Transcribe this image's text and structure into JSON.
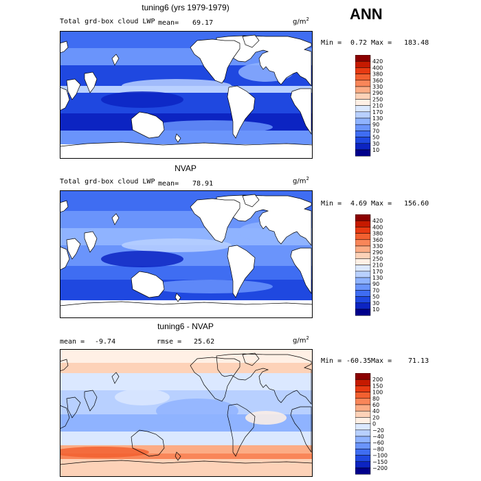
{
  "season": "ANN",
  "panels": [
    {
      "title": "tuning6 (yrs 1979-1979)",
      "subtitle": "Total grd-box cloud LWP",
      "stat_left": "mean=",
      "stat_left_value": "69.17",
      "stat_right": "",
      "stat_right_value": "",
      "units": "g/m",
      "units_exp": "2",
      "min_label": "Min =",
      "min_value": "0.72",
      "max_label": "Max =",
      "max_value": "183.48",
      "levels": [
        "420",
        "400",
        "380",
        "360",
        "330",
        "290",
        "250",
        "210",
        "170",
        "130",
        "90",
        "70",
        "50",
        "30",
        "10"
      ],
      "colors": [
        "#8b0000",
        "#c61a00",
        "#e83a12",
        "#f26030",
        "#f98659",
        "#fcac85",
        "#fdd2b8",
        "#fff0e5",
        "#dbe8ff",
        "#b8d0ff",
        "#8fb3ff",
        "#6a94fb",
        "#3f6df2",
        "#1f48e0",
        "#0c24c2",
        "#00008b"
      ],
      "kind": "model"
    },
    {
      "title": "NVAP",
      "subtitle": "Total grd-box cloud LWP",
      "stat_left": "mean=",
      "stat_left_value": "78.91",
      "stat_right": "",
      "stat_right_value": "",
      "units": "g/m",
      "units_exp": "2",
      "min_label": "Min =",
      "min_value": "4.69",
      "max_label": "Max =",
      "max_value": "156.60",
      "levels": [
        "420",
        "400",
        "380",
        "360",
        "330",
        "290",
        "250",
        "210",
        "170",
        "130",
        "90",
        "70",
        "50",
        "30",
        "10"
      ],
      "colors": [
        "#8b0000",
        "#c61a00",
        "#e83a12",
        "#f26030",
        "#f98659",
        "#fcac85",
        "#fdd2b8",
        "#fff0e5",
        "#dbe8ff",
        "#b8d0ff",
        "#8fb3ff",
        "#6a94fb",
        "#3f6df2",
        "#1f48e0",
        "#0c24c2",
        "#00008b"
      ],
      "kind": "obs"
    },
    {
      "title": "tuning6 - NVAP",
      "subtitle": "",
      "stat_left": "mean =",
      "stat_left_value": "-9.74",
      "stat_right": "rmse =",
      "stat_right_value": "25.62",
      "units": "g/m",
      "units_exp": "2",
      "min_label": "Min =",
      "min_value": "-60.35",
      "max_label": "Max =",
      "max_value": "71.13",
      "levels": [
        "200",
        "150",
        "100",
        "80",
        "60",
        "40",
        "20",
        "0",
        "−20",
        "−40",
        "−60",
        "−80",
        "−100",
        "−150",
        "−200"
      ],
      "colors": [
        "#8b0000",
        "#c61a00",
        "#e83a12",
        "#f26030",
        "#f98659",
        "#fcac85",
        "#fdd2b8",
        "#fff0e5",
        "#dbe8ff",
        "#b8d0ff",
        "#8fb3ff",
        "#6a94fb",
        "#3f6df2",
        "#1f48e0",
        "#0c24c2",
        "#00008b"
      ],
      "kind": "diff"
    }
  ]
}
